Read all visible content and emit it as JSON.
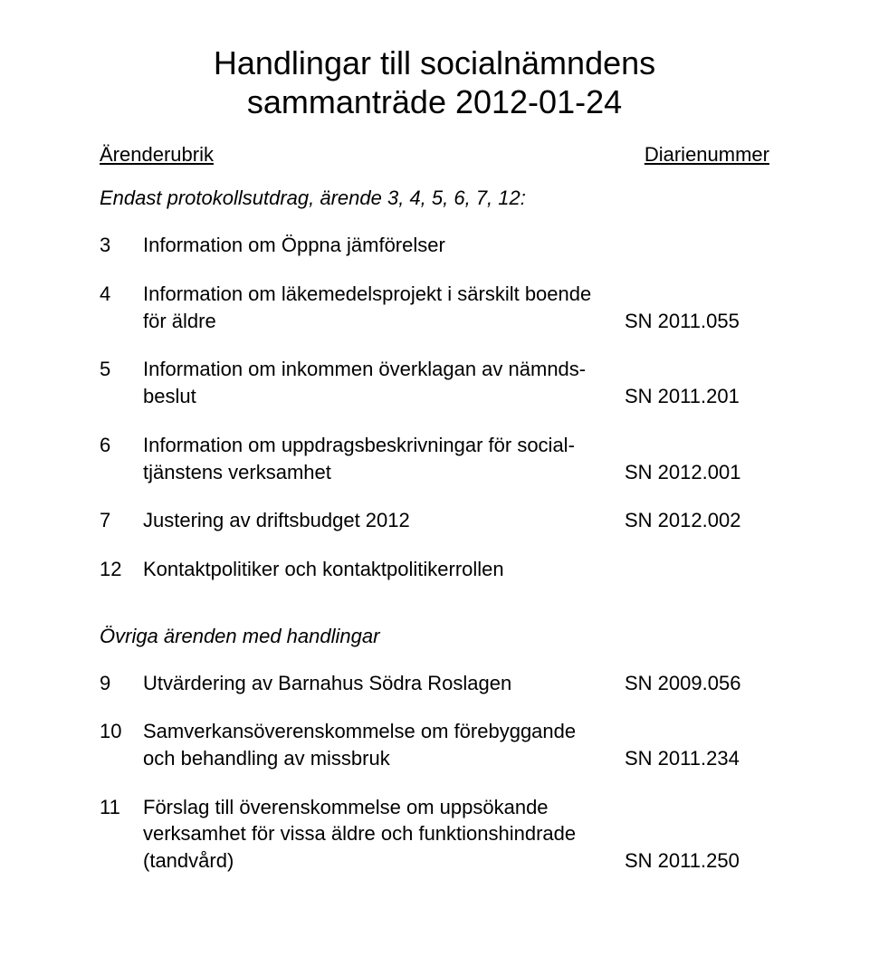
{
  "title_line1": "Handlingar till socialnämndens",
  "title_line2": "sammanträde 2012-01-24",
  "header_left": "Ärenderubrik",
  "header_right": "Diarienummer",
  "intro": "Endast protokollsutdrag, ärende 3, 4, 5, 6, 7, 12:",
  "items1": [
    {
      "num": "3",
      "desc": "Information om Öppna jämförelser",
      "dn": ""
    },
    {
      "num": "4",
      "desc": "Information om läkemedelsprojekt i särskilt boende för äldre",
      "dn": "SN 2011.055"
    },
    {
      "num": "5",
      "desc": "Information om inkommen överklagan av nämnds-beslut",
      "dn": "SN 2011.201"
    },
    {
      "num": "6",
      "desc": "Information om uppdragsbeskrivningar för social-tjänstens verksamhet",
      "dn": "SN 2012.001"
    },
    {
      "num": "7",
      "desc": "Justering av driftsbudget 2012",
      "dn": "SN 2012.002"
    },
    {
      "num": "12",
      "desc": "Kontaktpolitiker och kontaktpolitikerrollen",
      "dn": ""
    }
  ],
  "section2_heading": "Övriga ärenden med handlingar",
  "items2": [
    {
      "num": "9",
      "desc": "Utvärdering av Barnahus Södra Roslagen",
      "dn": "SN 2009.056"
    },
    {
      "num": "10",
      "desc": "Samverkansöverenskommelse om förebyggande och behandling av missbruk",
      "dn": "SN 2011.234"
    },
    {
      "num": "11",
      "desc": "Förslag till överenskommelse om uppsökande verksamhet för vissa äldre och funktionshindrade (tandvård)",
      "dn": "SN 2011.250"
    }
  ]
}
